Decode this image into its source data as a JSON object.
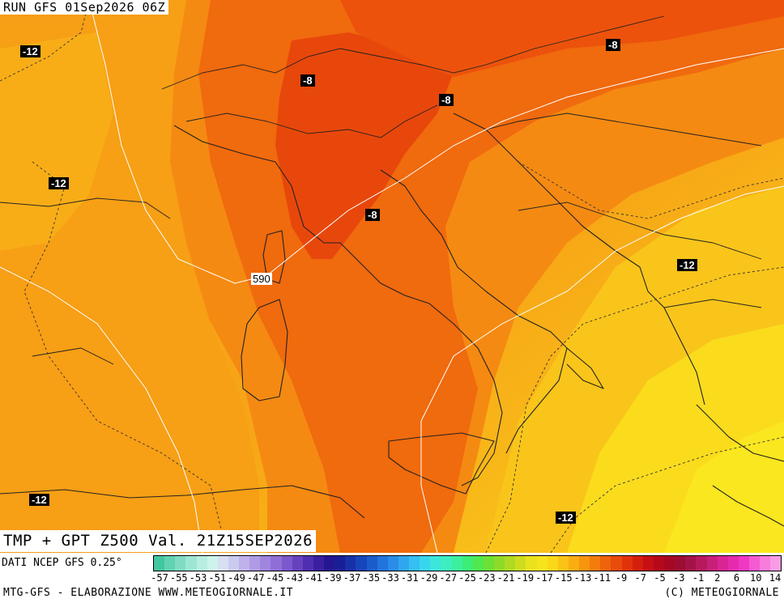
{
  "header": {
    "run_label": "RUN GFS 01Sep2026 06Z"
  },
  "title": {
    "text": "TMP + GPT Z500 Val. 21Z15SEP2026"
  },
  "source": {
    "text": "DATI NCEP GFS 0.25°"
  },
  "footer": {
    "left": "MTG-GFS - ELABORAZIONE WWW.METEOGIORNALE.IT",
    "right": "(C) METEOGIORNALE"
  },
  "map_labels": {
    "iso": [
      {
        "text": "-12"
      },
      {
        "text": "-12"
      },
      {
        "text": "-8"
      },
      {
        "text": "-8"
      },
      {
        "text": "-8"
      },
      {
        "text": "-8"
      },
      {
        "text": "-12"
      },
      {
        "text": "-12"
      },
      {
        "text": "-12"
      }
    ],
    "gpt": [
      {
        "text": "590"
      }
    ]
  },
  "legend": {
    "ticks": [
      "-57",
      "-55",
      "-53",
      "-51",
      "-49",
      "-47",
      "-45",
      "-43",
      "-41",
      "-39",
      "-37",
      "-35",
      "-33",
      "-31",
      "-29",
      "-27",
      "-25",
      "-23",
      "-21",
      "-19",
      "-17",
      "-15",
      "-13",
      "-11",
      "-9",
      "-7",
      "-5",
      "-3",
      "-1",
      "2",
      "6",
      "10",
      "14"
    ],
    "colors": [
      "#43c7a0",
      "#61d2b2",
      "#7fdcc3",
      "#9de6d4",
      "#b7eee1",
      "#cdf4ea",
      "#d8dff2",
      "#cbcaf0",
      "#bfb2ec",
      "#b09be6",
      "#a085df",
      "#8e6fd6",
      "#7b58cc",
      "#6642bf",
      "#4f2fb0",
      "#3a1fa1",
      "#26168f",
      "#1a1e96",
      "#1830a8",
      "#1745ba",
      "#1b5ccc",
      "#2274dc",
      "#2a8ce8",
      "#30a6ef",
      "#35bff2",
      "#38d6ee",
      "#3be6db",
      "#3ceec0",
      "#3bf09c",
      "#3ced76",
      "#4fe84e",
      "#6ce034",
      "#8ddb28",
      "#aeda22",
      "#cedc1f",
      "#e9e21d",
      "#f6e41c",
      "#fad719",
      "#fac315",
      "#f9ad12",
      "#f7950f",
      "#f37c0d",
      "#ee630c",
      "#e84b0b",
      "#e0330b",
      "#d51f0d",
      "#c60f12",
      "#b5081a",
      "#a60824",
      "#9c0d31",
      "#a51247",
      "#b7195f",
      "#c81f79",
      "#d82594",
      "#e52aae",
      "#ef38c3",
      "#f45ad1",
      "#f77cdc",
      "#f99ce5"
    ]
  },
  "chart_data": {
    "type": "heatmap",
    "title": "TMP + GPT Z500 Val. 21Z15SEP2026",
    "field_temperature_labels": [
      -12,
      -12,
      -8,
      -8,
      -8,
      -8,
      -12,
      -12,
      -12
    ],
    "geopotential_labels": [
      590
    ],
    "colorbar_range": [
      -57,
      14
    ]
  }
}
